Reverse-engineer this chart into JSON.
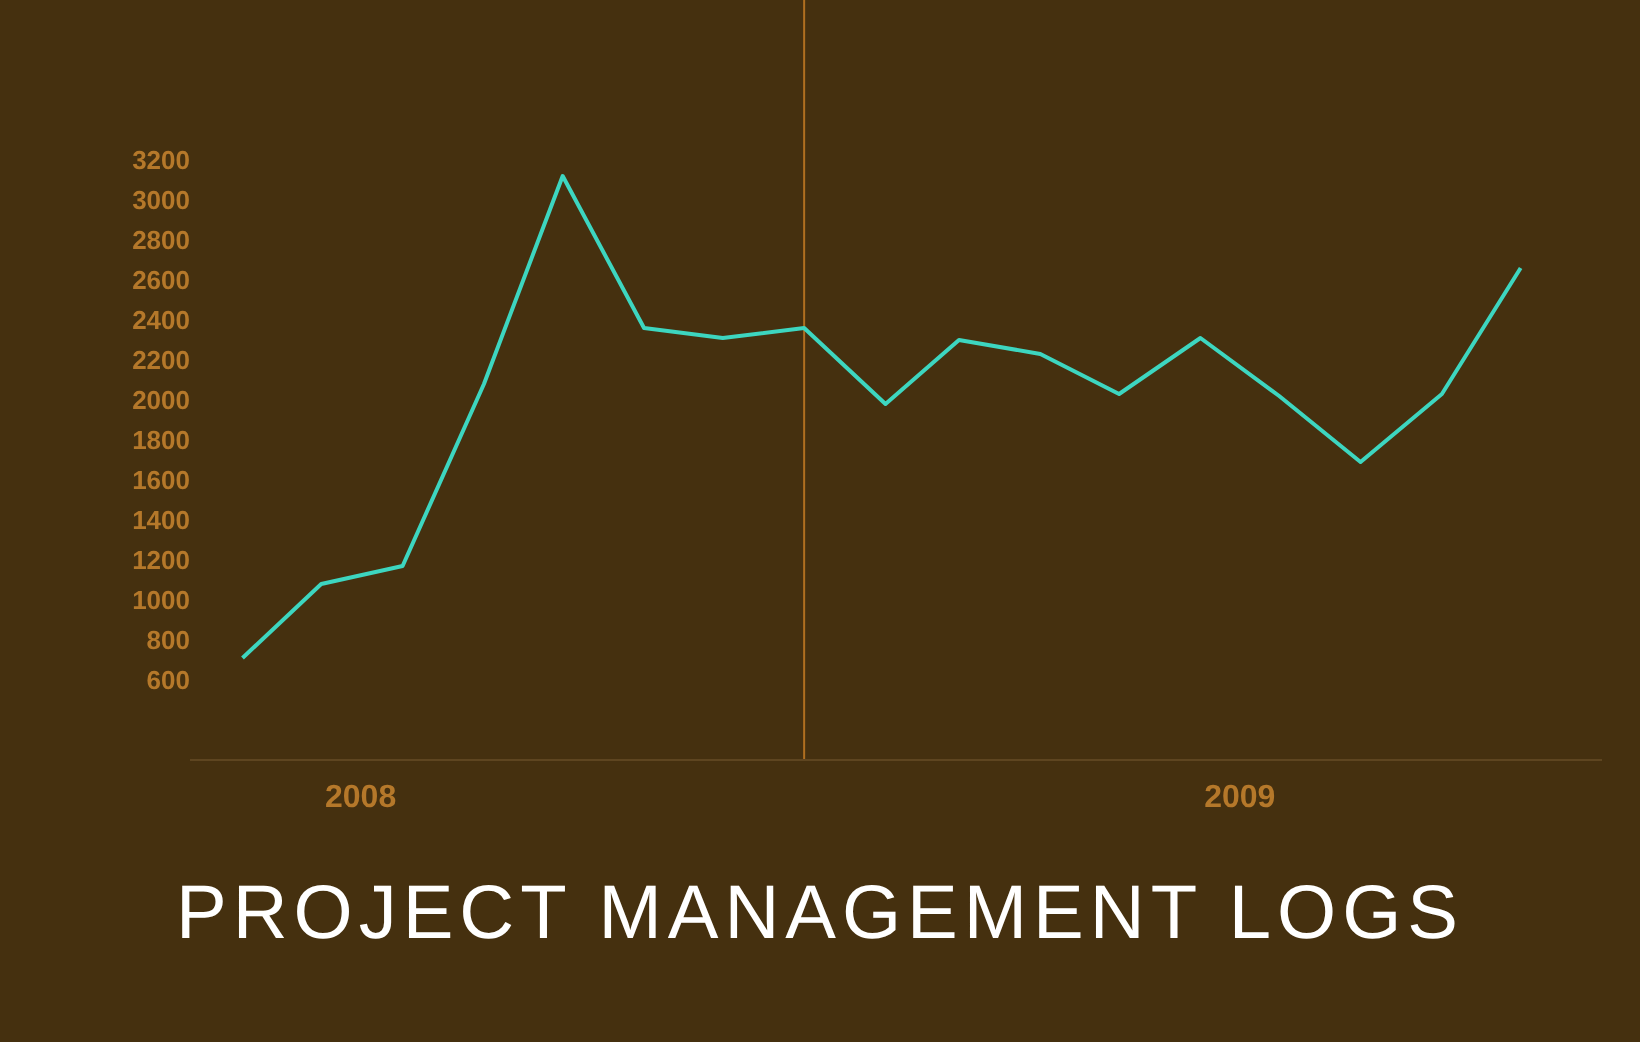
{
  "chart_data": {
    "type": "line",
    "title": "PROJECT MANAGEMENT LOGS",
    "x": [
      "2008-06",
      "2008-07",
      "2008-08",
      "2008-09",
      "2008-10",
      "2008-11",
      "2008-12",
      "2009-01",
      "2009-02",
      "2009-03",
      "2009-04",
      "2009-05",
      "2009-06",
      "2009-07",
      "2009-08",
      "2009-09",
      "2009-10"
    ],
    "series": [
      {
        "color": "#3dd6c0",
        "values": [
          710,
          1080,
          1170,
          2080,
          3120,
          2360,
          2310,
          2360,
          1980,
          2300,
          2230,
          2030,
          2310,
          2020,
          1690,
          2030,
          2660
        ]
      }
    ],
    "xlim": [
      "2008-05-12",
      "2009-11"
    ],
    "xticks": [
      {
        "value": "2008-07-16",
        "label": "2008"
      },
      {
        "value": "2009-06-16",
        "label": "2009"
      }
    ],
    "ylim": [
      200,
      4000
    ],
    "yticks": [
      600,
      800,
      1000,
      1200,
      1400,
      1600,
      1800,
      2000,
      2200,
      2400,
      2600,
      2800,
      3000,
      3200
    ],
    "ref_lines": [
      {
        "axis": "x",
        "value": "2009-01",
        "color": "#b06f20"
      }
    ],
    "grid": false,
    "legend": false,
    "marker": "none",
    "line_style": "solid"
  }
}
